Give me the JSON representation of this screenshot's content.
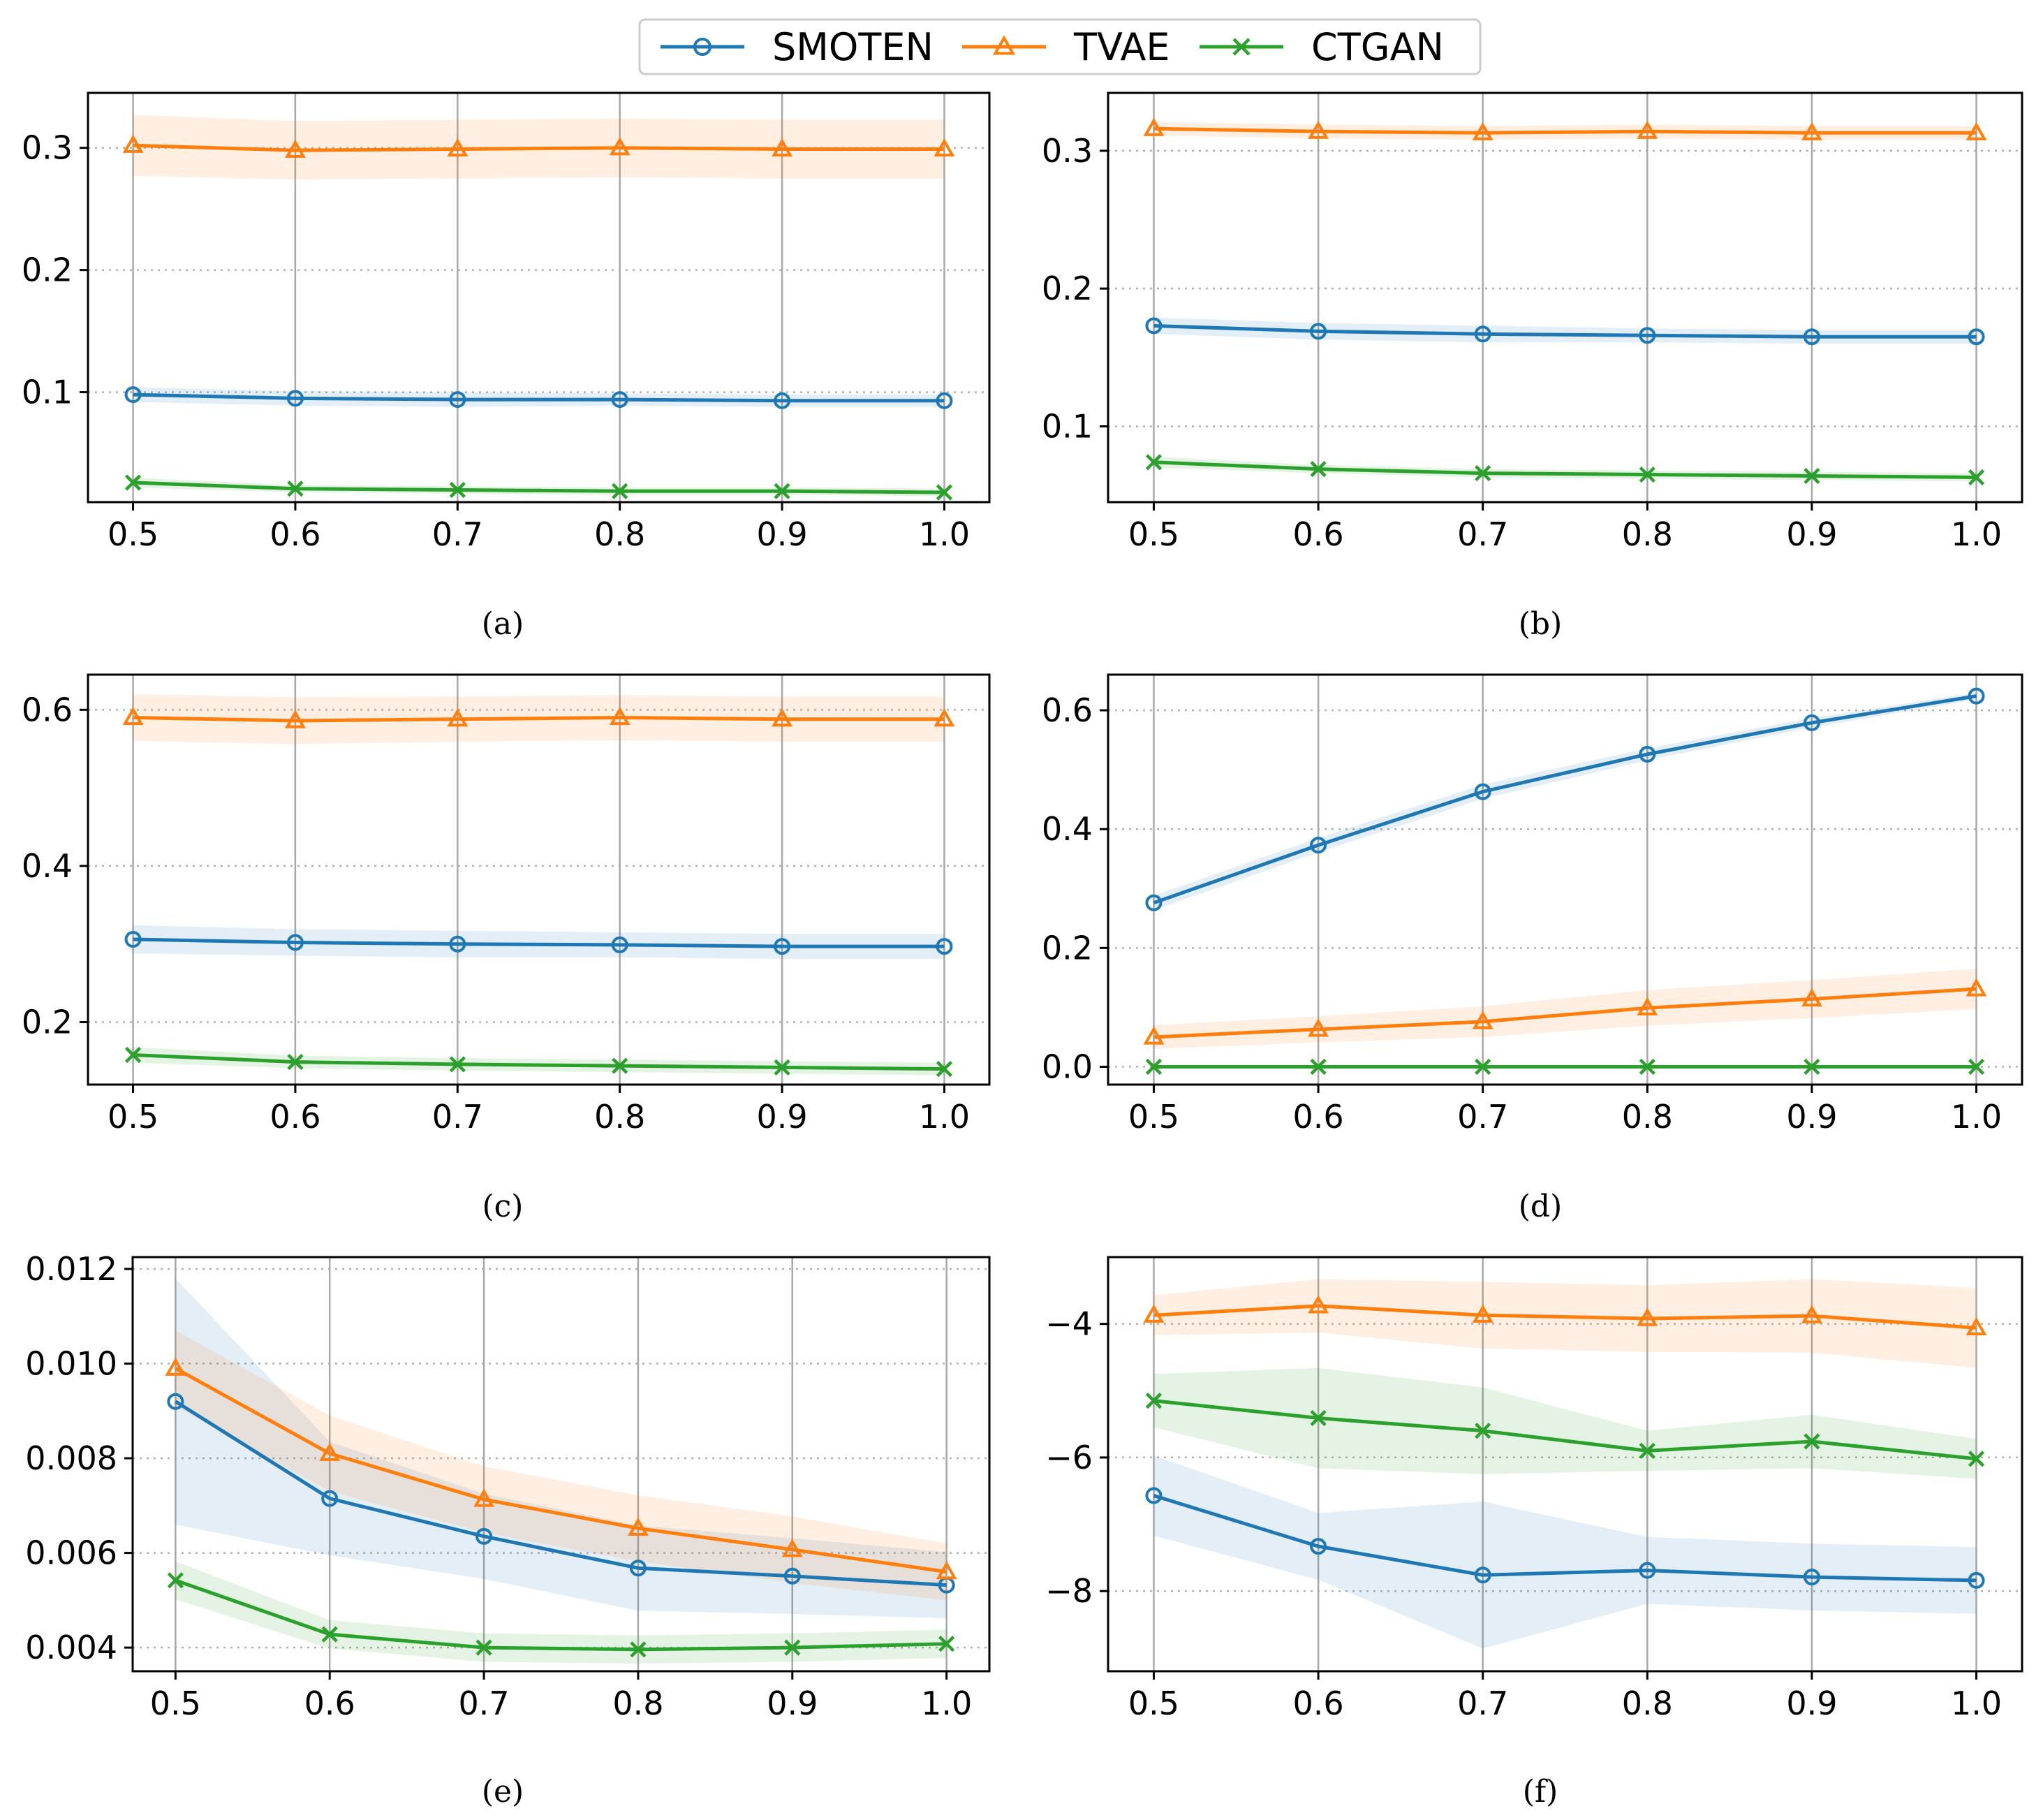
{
  "legend": [
    {
      "name": "SMOTEN",
      "color": "#1f77b4",
      "marker": "circle"
    },
    {
      "name": "TVAE",
      "color": "#ff7f0e",
      "marker": "triangle"
    },
    {
      "name": "CTGAN",
      "color": "#2ca02c",
      "marker": "x"
    }
  ],
  "chart_data": [
    {
      "type": "line",
      "caption": "(a)",
      "x": [
        0.5,
        0.6,
        0.7,
        0.8,
        0.9,
        1.0
      ],
      "xticks": [
        "0.5",
        "0.6",
        "0.7",
        "0.8",
        "0.9",
        "1.0"
      ],
      "ylim": [
        0.01,
        0.345
      ],
      "yticks": [
        0.1,
        0.2,
        0.3
      ],
      "yticklabels": [
        "0.1",
        "0.2",
        "0.3"
      ],
      "series": [
        {
          "name": "SMOTEN",
          "values": [
            0.098,
            0.095,
            0.094,
            0.094,
            0.093,
            0.093
          ],
          "band": [
            0.006,
            0.006,
            0.006,
            0.005,
            0.005,
            0.005
          ]
        },
        {
          "name": "TVAE",
          "values": [
            0.302,
            0.298,
            0.299,
            0.3,
            0.299,
            0.299
          ],
          "band": [
            0.025,
            0.024,
            0.024,
            0.024,
            0.024,
            0.024
          ]
        },
        {
          "name": "CTGAN",
          "values": [
            0.026,
            0.021,
            0.02,
            0.019,
            0.019,
            0.018
          ],
          "band": [
            0.004,
            0.003,
            0.003,
            0.003,
            0.003,
            0.003
          ]
        }
      ]
    },
    {
      "type": "line",
      "caption": "(b)",
      "x": [
        0.5,
        0.6,
        0.7,
        0.8,
        0.9,
        1.0
      ],
      "xticks": [
        "0.5",
        "0.6",
        "0.7",
        "0.8",
        "0.9",
        "1.0"
      ],
      "ylim": [
        0.045,
        0.342
      ],
      "yticks": [
        0.1,
        0.2,
        0.3
      ],
      "yticklabels": [
        "0.1",
        "0.2",
        "0.3"
      ],
      "series": [
        {
          "name": "SMOTEN",
          "values": [
            0.173,
            0.169,
            0.167,
            0.166,
            0.165,
            0.165
          ],
          "band": [
            0.006,
            0.006,
            0.006,
            0.005,
            0.005,
            0.005
          ]
        },
        {
          "name": "TVAE",
          "values": [
            0.316,
            0.314,
            0.313,
            0.314,
            0.313,
            0.313
          ],
          "band": [
            0.005,
            0.005,
            0.005,
            0.005,
            0.005,
            0.005
          ]
        },
        {
          "name": "CTGAN",
          "values": [
            0.074,
            0.069,
            0.066,
            0.065,
            0.064,
            0.063
          ],
          "band": [
            0.004,
            0.003,
            0.003,
            0.003,
            0.003,
            0.003
          ]
        }
      ]
    },
    {
      "type": "line",
      "caption": "(c)",
      "x": [
        0.5,
        0.6,
        0.7,
        0.8,
        0.9,
        1.0
      ],
      "xticks": [
        "0.5",
        "0.6",
        "0.7",
        "0.8",
        "0.9",
        "1.0"
      ],
      "ylim": [
        0.12,
        0.645
      ],
      "yticks": [
        0.2,
        0.4,
        0.6
      ],
      "yticklabels": [
        "0.2",
        "0.4",
        "0.6"
      ],
      "series": [
        {
          "name": "SMOTEN",
          "values": [
            0.306,
            0.302,
            0.3,
            0.299,
            0.297,
            0.297
          ],
          "band": [
            0.018,
            0.017,
            0.017,
            0.016,
            0.016,
            0.016
          ]
        },
        {
          "name": "TVAE",
          "values": [
            0.59,
            0.586,
            0.588,
            0.59,
            0.588,
            0.588
          ],
          "band": [
            0.03,
            0.03,
            0.029,
            0.029,
            0.029,
            0.029
          ]
        },
        {
          "name": "CTGAN",
          "values": [
            0.158,
            0.149,
            0.146,
            0.144,
            0.142,
            0.14
          ],
          "band": [
            0.01,
            0.008,
            0.008,
            0.008,
            0.008,
            0.008
          ]
        }
      ]
    },
    {
      "type": "line",
      "caption": "(d)",
      "x": [
        0.5,
        0.6,
        0.7,
        0.8,
        0.9,
        1.0
      ],
      "xticks": [
        "0.5",
        "0.6",
        "0.7",
        "0.8",
        "0.9",
        "1.0"
      ],
      "ylim": [
        -0.03,
        0.66
      ],
      "yticks": [
        0.0,
        0.2,
        0.4,
        0.6
      ],
      "yticklabels": [
        "0.0",
        "0.2",
        "0.4",
        "0.6"
      ],
      "series": [
        {
          "name": "SMOTEN",
          "values": [
            0.276,
            0.373,
            0.463,
            0.526,
            0.579,
            0.624
          ],
          "band": [
            0.012,
            0.012,
            0.012,
            0.01,
            0.008,
            0.006
          ]
        },
        {
          "name": "TVAE",
          "values": [
            0.05,
            0.063,
            0.076,
            0.099,
            0.114,
            0.131
          ],
          "band": [
            0.02,
            0.022,
            0.026,
            0.03,
            0.032,
            0.034
          ]
        },
        {
          "name": "CTGAN",
          "values": [
            0.0,
            0.0,
            0.0,
            0.0,
            0.0,
            0.0
          ],
          "band": [
            0.002,
            0.002,
            0.002,
            0.002,
            0.002,
            0.002
          ]
        }
      ]
    },
    {
      "type": "line",
      "caption": "(e)",
      "x": [
        0.5,
        0.6,
        0.7,
        0.8,
        0.9,
        1.0
      ],
      "xticks": [
        "0.5",
        "0.6",
        "0.7",
        "0.8",
        "0.9",
        "1.0"
      ],
      "ylim": [
        0.0035,
        0.01225
      ],
      "yticks": [
        0.004,
        0.006,
        0.008,
        0.01,
        0.012
      ],
      "yticklabels": [
        "0.004",
        "0.006",
        "0.008",
        "0.010",
        "0.012"
      ],
      "series": [
        {
          "name": "SMOTEN",
          "values": [
            0.0092,
            0.00715,
            0.00635,
            0.00568,
            0.00551,
            0.00532
          ],
          "band": [
            0.0026,
            0.0012,
            0.0009,
            0.0009,
            0.0008,
            0.0007
          ]
        },
        {
          "name": "TVAE",
          "values": [
            0.0099,
            0.0081,
            0.00713,
            0.00652,
            0.00607,
            0.0056
          ],
          "band": [
            0.0008,
            0.0008,
            0.0007,
            0.0007,
            0.0007,
            0.0006
          ]
        },
        {
          "name": "CTGAN",
          "values": [
            0.00542,
            0.00428,
            0.004,
            0.00396,
            0.004,
            0.00408
          ],
          "band": [
            0.0004,
            0.0003,
            0.0003,
            0.0003,
            0.0003,
            0.0003
          ]
        }
      ]
    },
    {
      "type": "line",
      "caption": "(f)",
      "x": [
        0.5,
        0.6,
        0.7,
        0.8,
        0.9,
        1.0
      ],
      "xticks": [
        "0.5",
        "0.6",
        "0.7",
        "0.8",
        "0.9",
        "1.0"
      ],
      "ylim": [
        -9.2,
        -3.0
      ],
      "yticks": [
        -8,
        -6,
        -4
      ],
      "yticklabels": [
        "−8",
        "−6",
        "−4"
      ],
      "series": [
        {
          "name": "SMOTEN",
          "values": [
            -6.57,
            -7.33,
            -7.76,
            -7.69,
            -7.79,
            -7.84
          ],
          "band": [
            0.6,
            0.5,
            1.1,
            0.5,
            0.5,
            0.5
          ]
        },
        {
          "name": "TVAE",
          "values": [
            -3.87,
            -3.73,
            -3.87,
            -3.92,
            -3.88,
            -4.06
          ],
          "band": [
            0.3,
            0.4,
            0.5,
            0.5,
            0.55,
            0.6
          ]
        },
        {
          "name": "CTGAN",
          "values": [
            -5.15,
            -5.41,
            -5.6,
            -5.9,
            -5.76,
            -6.02
          ],
          "band": [
            0.4,
            0.75,
            0.65,
            0.3,
            0.4,
            0.3
          ]
        }
      ]
    }
  ]
}
